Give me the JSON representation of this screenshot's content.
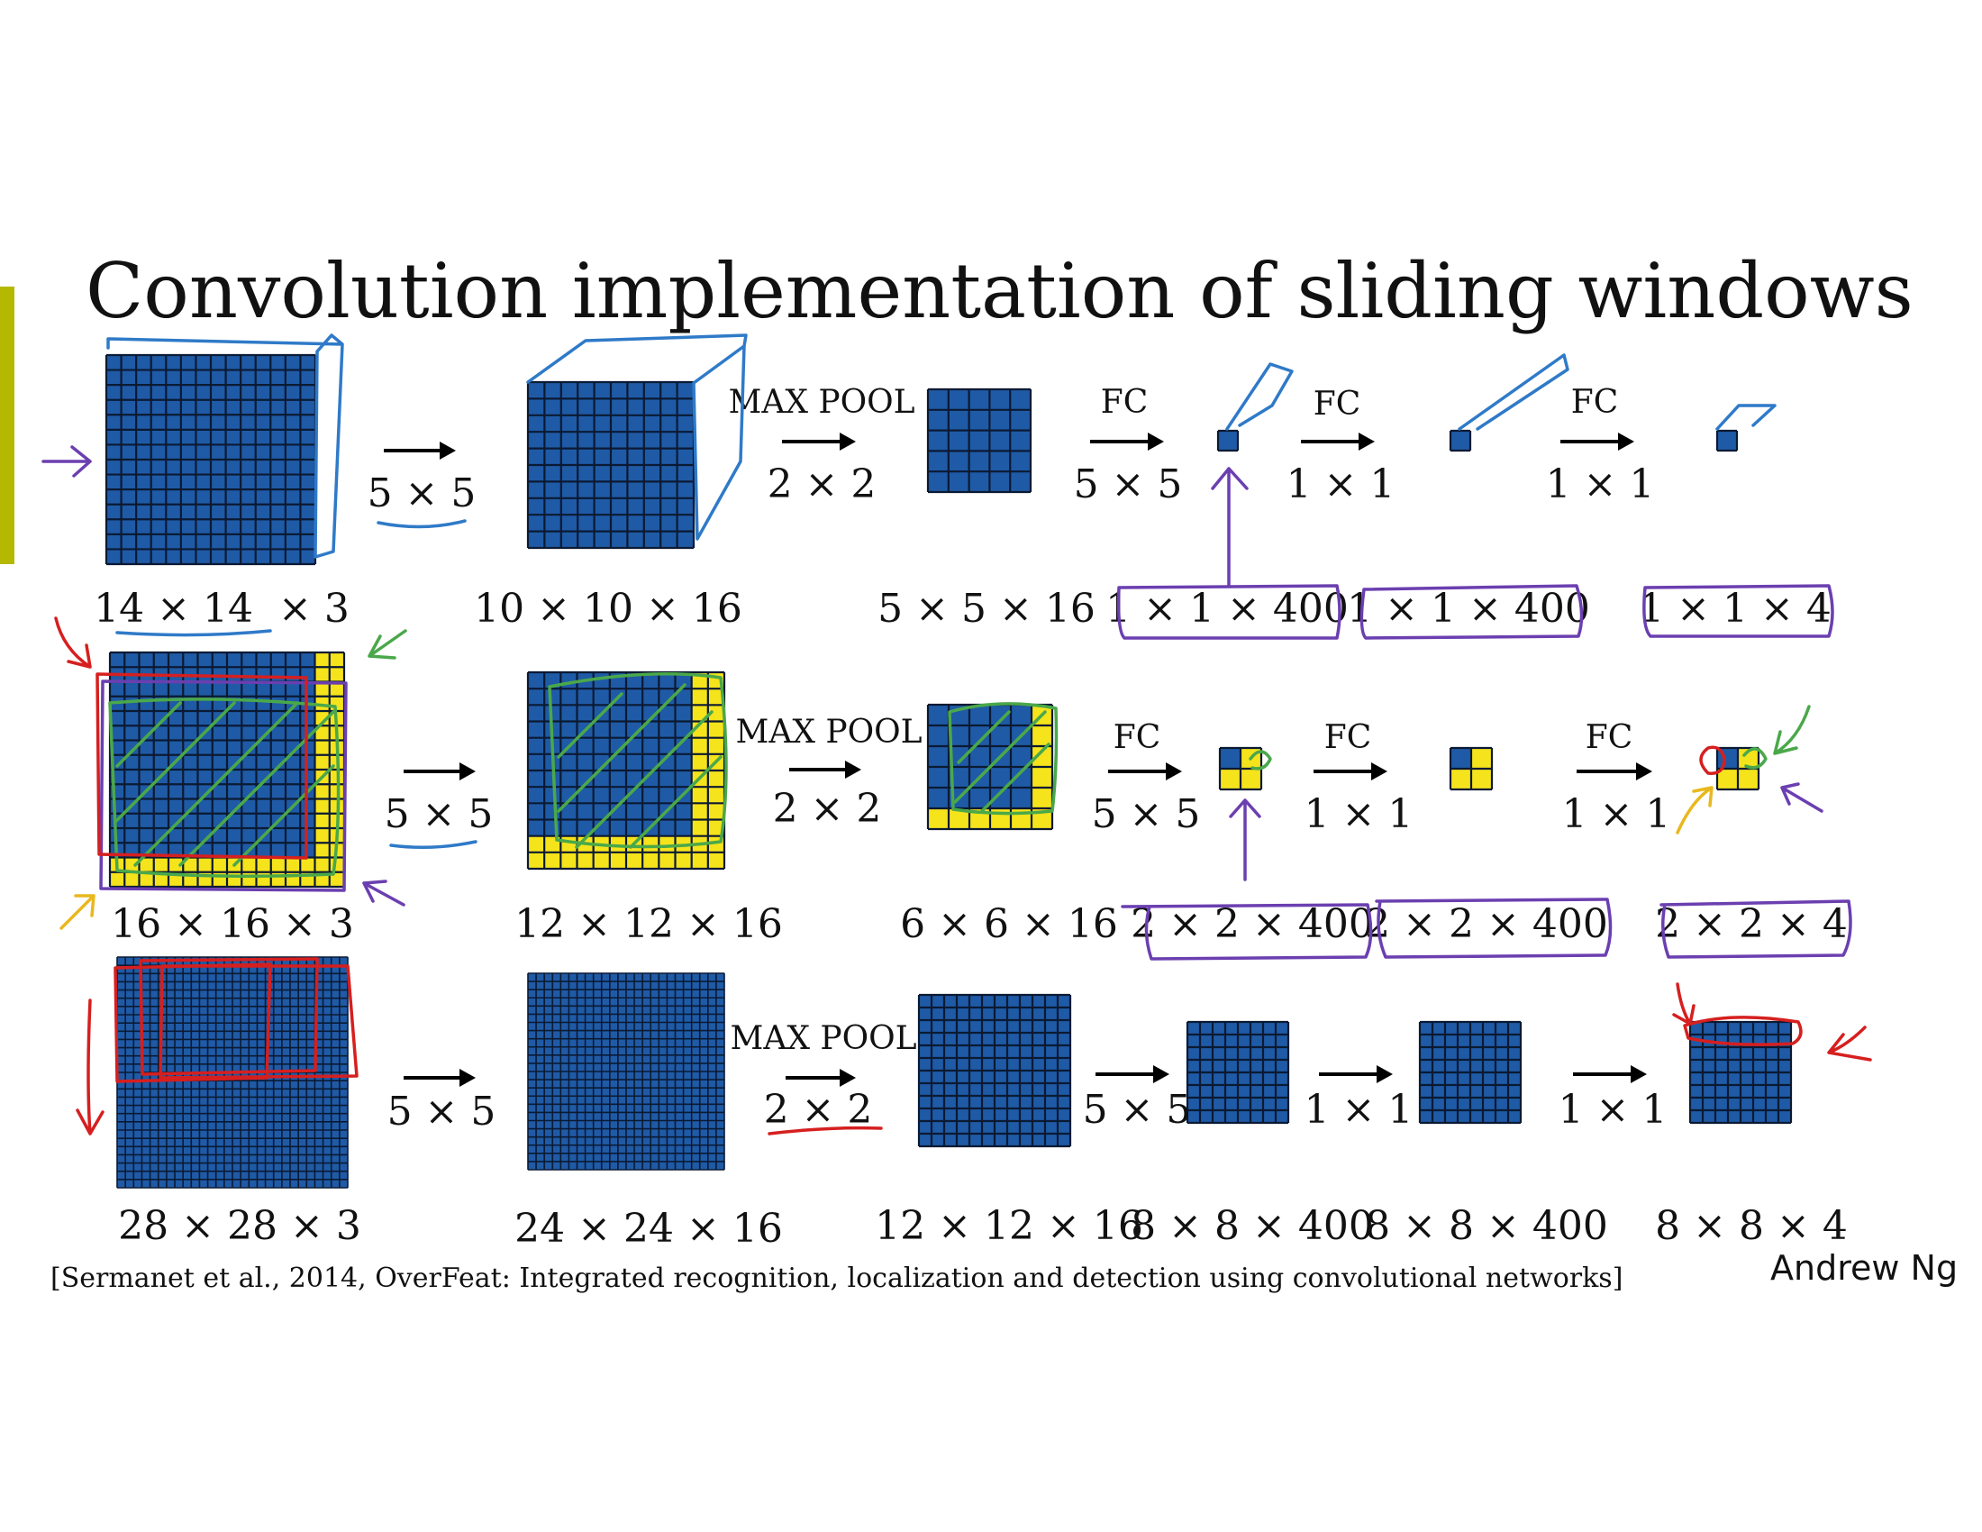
{
  "title": "Convolution implementation of sliding windows",
  "author": "Andrew Ng",
  "citation": "[Sermanet et al., 2014, OverFeat: Integrated recognition, localization and detection using convolutional networks]",
  "colors": {
    "cell_blue": "#1f5aa6",
    "cell_yellow": "#f5e31c",
    "grid_line": "#0b1a33",
    "accent_bar": "#b5b800",
    "ink_blue": "#2f7ac8",
    "ink_purple": "#6b3fb0",
    "ink_green": "#4aa84a",
    "ink_red": "#d61f1f",
    "ink_yellow": "#e8b81e"
  },
  "rows": [
    {
      "ops": [
        {
          "label": "5 × 5"
        },
        {
          "label": "2 × 2",
          "top": "MAX POOL"
        },
        {
          "label": "5 × 5",
          "top": "FC"
        },
        {
          "label": "1 × 1",
          "top": "FC"
        },
        {
          "label": "1 × 1",
          "top": "FC"
        }
      ],
      "dims": [
        "14 × 14  × 3",
        "10 × 10 × 16",
        "5 × 5 × 16",
        "1 × 1 × 400",
        "1 × 1 × 400",
        "1 × 1 × 4"
      ]
    },
    {
      "ops": [
        {
          "label": "5 × 5"
        },
        {
          "label": "2 × 2",
          "top": "MAX POOL"
        },
        {
          "label": "5 × 5",
          "top": "FC"
        },
        {
          "label": "1 × 1",
          "top": "FC"
        },
        {
          "label": "1 × 1",
          "top": "FC"
        }
      ],
      "dims": [
        "16 × 16 × 3",
        "12 × 12 × 16",
        "6 × 6 × 16",
        "2 × 2 × 400",
        "2 × 2 × 400",
        "2 × 2 × 4"
      ]
    },
    {
      "ops": [
        {
          "label": "5 × 5"
        },
        {
          "label": "2 × 2",
          "top": "MAX POOL"
        },
        {
          "label": "5 × 5"
        },
        {
          "label": "1 × 1"
        },
        {
          "label": "1 × 1"
        }
      ],
      "dims": [
        "28 × 28 × 3",
        "24 × 24 × 16",
        "12 × 12 × 16",
        "8 × 8 × 400",
        "8 × 8 × 400",
        "8 × 8 × 4"
      ]
    }
  ]
}
